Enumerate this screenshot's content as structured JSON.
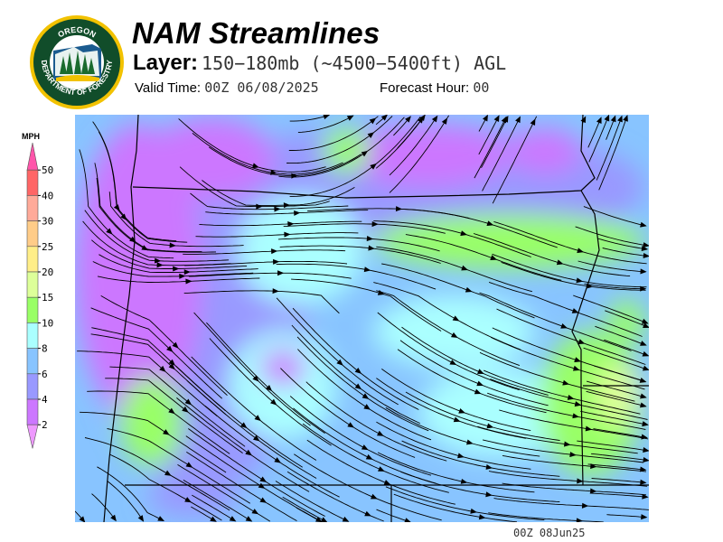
{
  "logo": {
    "top_text": "OREGON",
    "bottom_text": "DEPARTMENT OF FORESTRY"
  },
  "header": {
    "title": "NAM Streamlines",
    "layer_label": "Layer:",
    "layer_value": "150−180mb (~4500−5400ft) AGL",
    "valid_label": "Valid Time:",
    "valid_value": "00Z 06/08/2025",
    "forecast_label": "Forecast Hour:",
    "forecast_value": "00"
  },
  "legend": {
    "units": "MPH",
    "ticks": [
      "50",
      "40",
      "30",
      "25",
      "20",
      "15",
      "10",
      "8",
      "6",
      "4",
      "2"
    ],
    "colors": [
      "#ff55aa",
      "#ff6666",
      "#ffaa99",
      "#ffcc88",
      "#ffee88",
      "#ddff99",
      "#99ff66",
      "#aaffff",
      "#88c4ff",
      "#9999ff",
      "#cc77ff",
      "#ee99ff"
    ]
  },
  "footer": {
    "timestamp": "00Z 08Jun25"
  }
}
